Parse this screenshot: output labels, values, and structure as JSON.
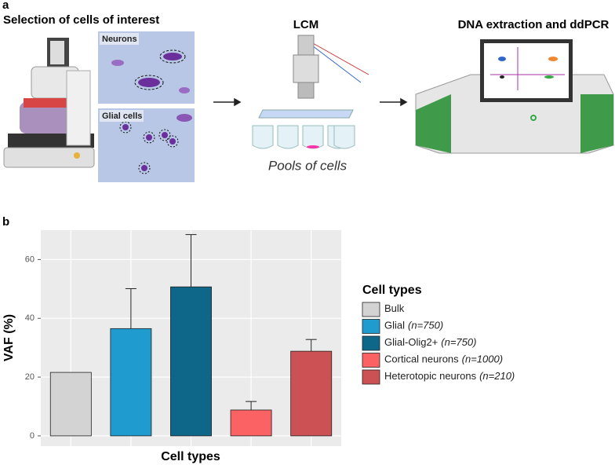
{
  "panel_a": {
    "label": "a",
    "steps": [
      {
        "title": "Selection of cells of interest",
        "images": [
          "Neurons",
          "Glial cells"
        ]
      },
      {
        "title": "LCM",
        "caption": "Pools of cells"
      },
      {
        "title": "DNA extraction and ddPCR"
      }
    ]
  },
  "chart_data": {
    "type": "bar",
    "panel_label": "b",
    "x_label": "Cell types",
    "y_label": "VAF (%)",
    "legend_title": "Cell types",
    "categories": [
      "Bulk",
      "Glial",
      "Glial-Olig2+",
      "Cortical neurons",
      "Heterotopic neurons"
    ],
    "category_notes": [
      null,
      "(n=750)",
      "(n=750)",
      "(n=1000)",
      "(n=210)"
    ],
    "values": [
      21.6,
      36.5,
      50.7,
      8.8,
      28.8
    ],
    "errors": [
      null,
      13.6,
      17.8,
      2.9,
      4.0
    ],
    "colors": [
      "#d3d3d3",
      "#1f9bcf",
      "#0e6688",
      "#fa6264",
      "#cb5155"
    ],
    "ylim": [
      -3.5,
      70
    ],
    "yticks": [
      0,
      20,
      40,
      60
    ],
    "grid": true,
    "legend": "right"
  }
}
